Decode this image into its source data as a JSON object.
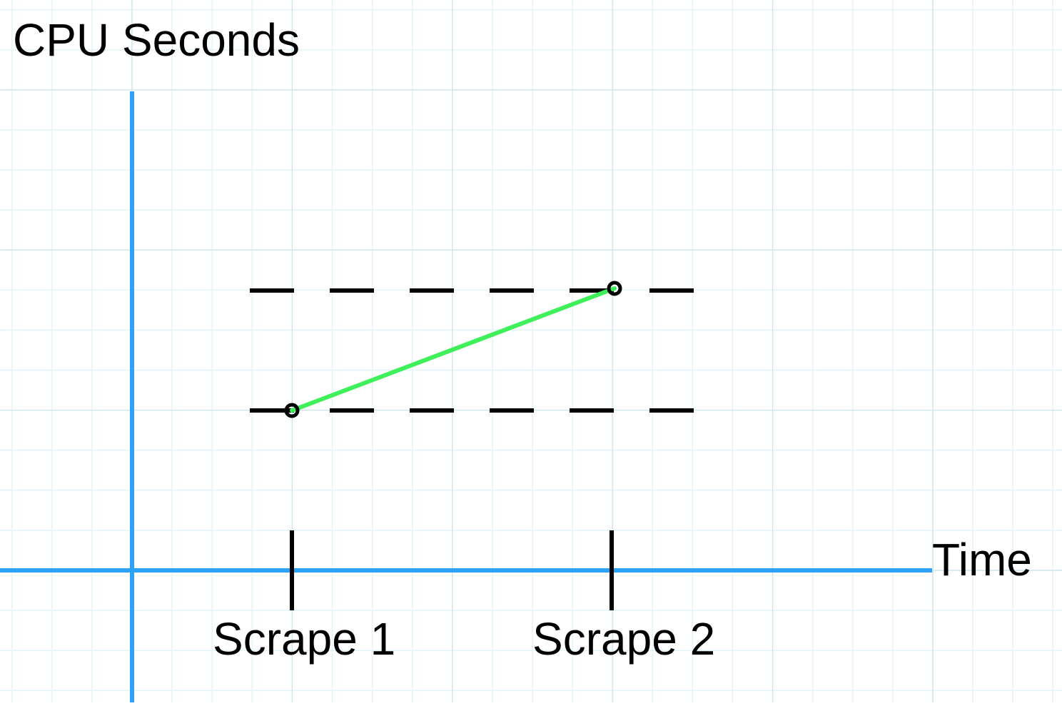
{
  "diagram": {
    "y_axis_label": "CPU Seconds",
    "x_axis_label": "Time",
    "scrapes": [
      {
        "label": "Scrape 1",
        "order": 1
      },
      {
        "label": "Scrape 2",
        "order": 2
      }
    ],
    "colors": {
      "background": "#ffffff",
      "grid_minor": "#e4f4f8",
      "grid_major": "#cfe6ec",
      "axis": "#2ea2f8",
      "rate_line": "#3ff05a",
      "marks": "#000000"
    }
  }
}
